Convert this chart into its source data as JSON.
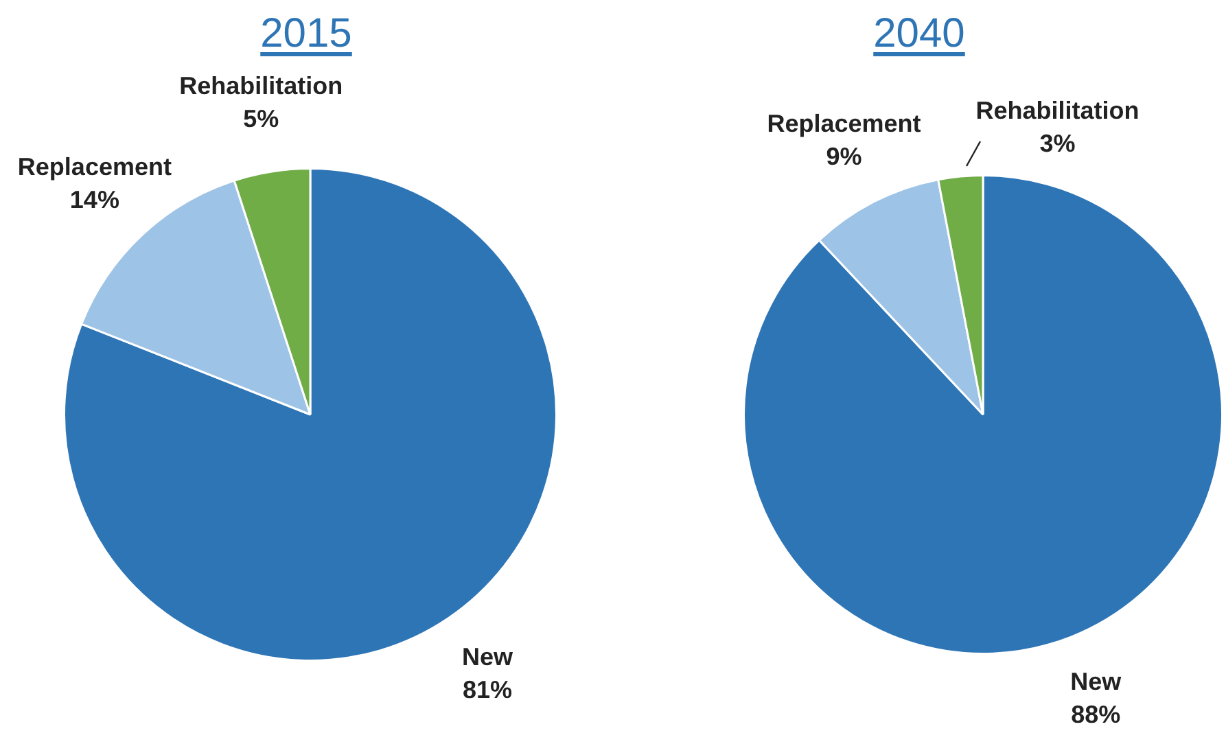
{
  "chart_data": [
    {
      "type": "pie",
      "title": "2015",
      "categories": [
        "New",
        "Replacement",
        "Rehabilitation"
      ],
      "values": [
        81,
        14,
        5
      ],
      "colors": [
        "#2e75b6",
        "#9dc3e6",
        "#70ad47"
      ],
      "value_labels": [
        "81%",
        "14%",
        "5%"
      ]
    },
    {
      "type": "pie",
      "title": "2040",
      "categories": [
        "New",
        "Replacement",
        "Rehabilitation"
      ],
      "values": [
        88,
        9,
        3
      ],
      "colors": [
        "#2e75b6",
        "#9dc3e6",
        "#70ad47"
      ],
      "value_labels": [
        "88%",
        "9%",
        "3%"
      ]
    }
  ]
}
